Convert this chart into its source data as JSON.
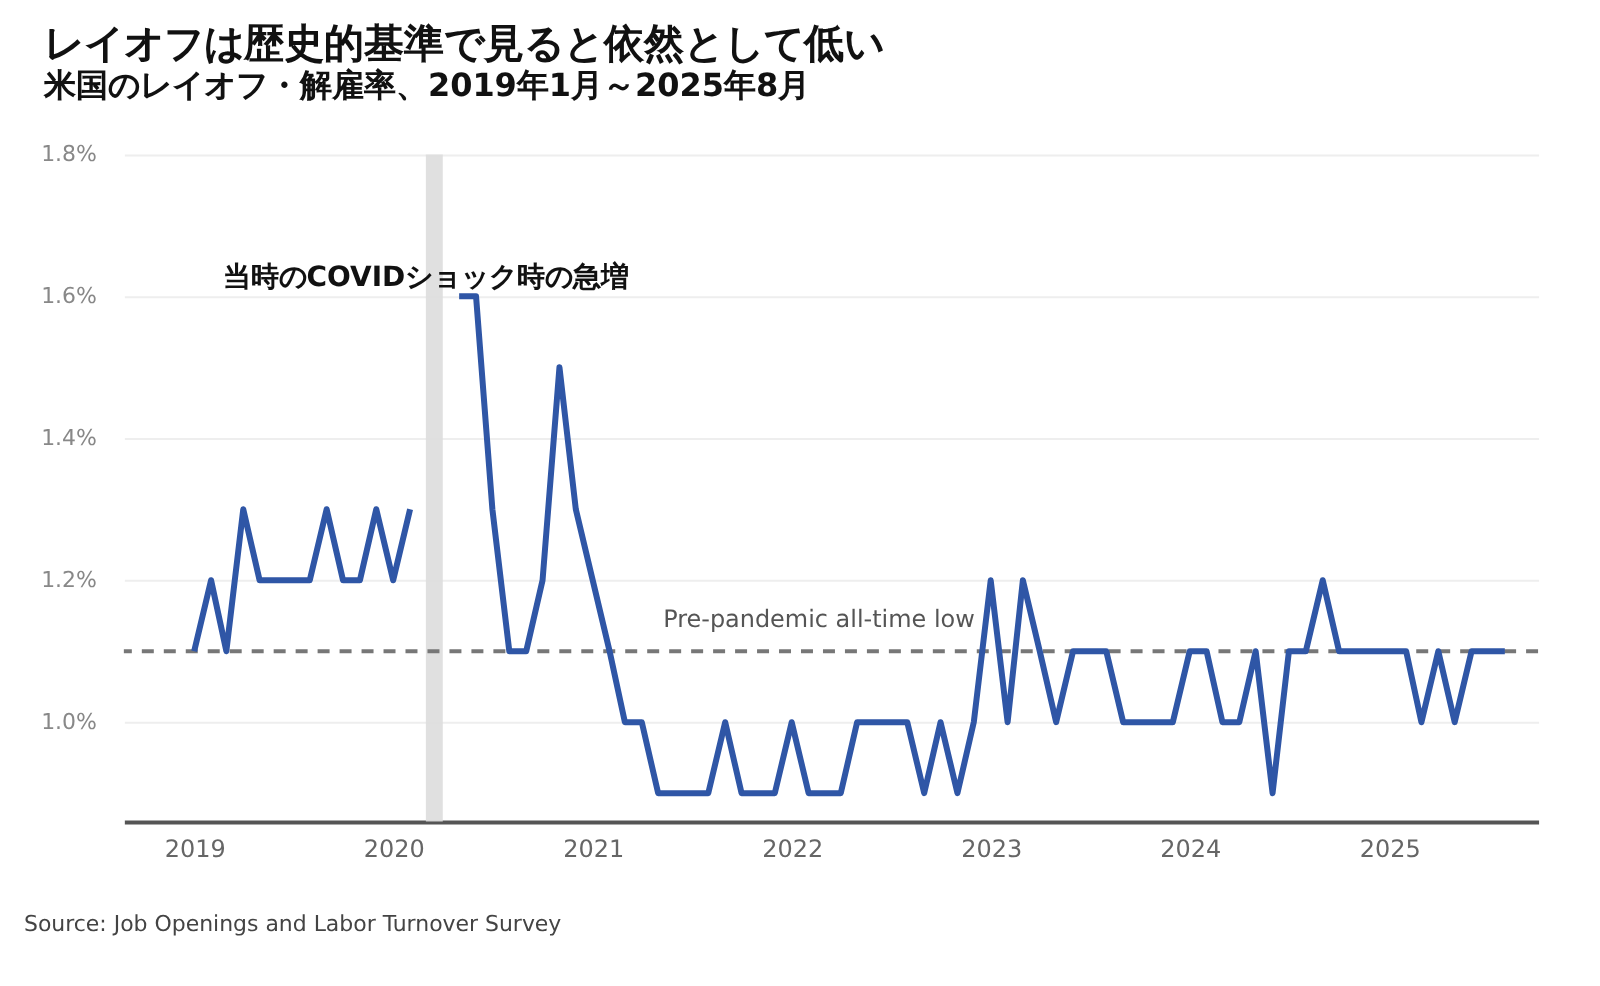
{
  "chart_data": {
    "type": "line",
    "title": "レイオフは歴史的基準で見ると依然として低い",
    "subtitle": "米国のレイオフ・解雇率、2019年1月～2025年8月",
    "x": [
      "2019-01",
      "2019-02",
      "2019-03",
      "2019-04",
      "2019-05",
      "2019-06",
      "2019-07",
      "2019-08",
      "2019-09",
      "2019-10",
      "2019-11",
      "2019-12",
      "2020-01",
      "2020-02",
      "2020-03",
      "2020-04",
      "2020-05",
      "2020-06",
      "2020-07",
      "2020-08",
      "2020-09",
      "2020-10",
      "2020-11",
      "2020-12",
      "2021-01",
      "2021-02",
      "2021-03",
      "2021-04",
      "2021-05",
      "2021-06",
      "2021-07",
      "2021-08",
      "2021-09",
      "2021-10",
      "2021-11",
      "2021-12",
      "2022-01",
      "2022-02",
      "2022-03",
      "2022-04",
      "2022-05",
      "2022-06",
      "2022-07",
      "2022-08",
      "2022-09",
      "2022-10",
      "2022-11",
      "2022-12",
      "2023-01",
      "2023-02",
      "2023-03",
      "2023-04",
      "2023-05",
      "2023-06",
      "2023-07",
      "2023-08",
      "2023-09",
      "2023-10",
      "2023-11",
      "2023-12",
      "2024-01",
      "2024-02",
      "2024-03",
      "2024-04",
      "2024-05",
      "2024-06",
      "2024-07",
      "2024-08",
      "2024-09",
      "2024-10",
      "2024-11",
      "2024-12",
      "2025-01",
      "2025-02",
      "2025-03",
      "2025-04",
      "2025-05",
      "2025-06",
      "2025-07",
      "2025-08"
    ],
    "series": [
      {
        "color": "#2f56a6",
        "values": [
          1.1,
          1.2,
          1.1,
          1.3,
          1.2,
          1.2,
          1.2,
          1.2,
          1.3,
          1.2,
          1.2,
          1.3,
          1.2,
          1.3,
          null,
          null,
          1.6,
          1.6,
          1.3,
          1.1,
          1.1,
          1.2,
          1.5,
          1.3,
          1.2,
          1.1,
          1.0,
          1.0,
          0.9,
          0.9,
          0.9,
          0.9,
          1.0,
          0.9,
          0.9,
          0.9,
          1.0,
          0.9,
          0.9,
          0.9,
          1.0,
          1.0,
          1.0,
          1.0,
          0.9,
          1.0,
          0.9,
          1.0,
          1.2,
          1.0,
          1.2,
          1.1,
          1.0,
          1.1,
          1.1,
          1.1,
          1.0,
          1.0,
          1.0,
          1.0,
          1.1,
          1.1,
          1.0,
          1.0,
          1.1,
          0.9,
          1.1,
          1.1,
          1.2,
          1.1,
          1.1,
          1.1,
          1.1,
          1.1,
          1.0,
          1.1,
          1.0,
          1.1,
          1.1,
          1.1
        ]
      }
    ],
    "xlim": [
      "2018-08-25",
      "2025-10-01"
    ],
    "xticks": [
      "2019",
      "2020",
      "2021",
      "2022",
      "2023",
      "2024",
      "2025"
    ],
    "ylim": [
      0.86,
      1.8
    ],
    "yticks": [
      {
        "value": 1.0,
        "label": "1.0%"
      },
      {
        "value": 1.2,
        "label": "1.2%"
      },
      {
        "value": 1.4,
        "label": "1.4%"
      },
      {
        "value": 1.6,
        "label": "1.6%"
      },
      {
        "value": 1.8,
        "label": "1.8%"
      }
    ],
    "grid": "y",
    "marker": "none",
    "line_style": "solid",
    "ref_lines": [
      {
        "axis": "y",
        "value": 1.1,
        "label": "Pre-pandemic all-time low",
        "color": "#777777",
        "line_style": "dashed"
      }
    ],
    "bands": [
      {
        "axis": "x",
        "from": "2020-03",
        "to": "2020-04",
        "label": "当時のCOVIDショック時の急増",
        "color": "#dddddd"
      }
    ],
    "annotations": [
      "Source: Job Openings and Labor Turnover Survey"
    ]
  }
}
